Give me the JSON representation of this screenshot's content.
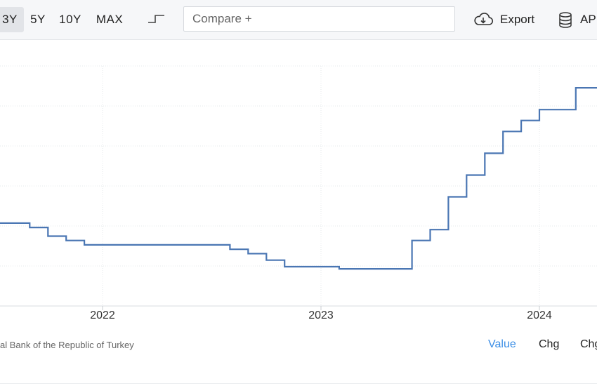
{
  "toolbar": {
    "ranges": [
      "3Y",
      "5Y",
      "10Y",
      "MAX"
    ],
    "active_range": "3Y",
    "compare_placeholder": "Compare +",
    "export_label": "Export",
    "api_label": "AP",
    "step_icon": "step-chart-icon",
    "export_icon": "cloud-download-icon",
    "api_icon": "database-icon"
  },
  "chart_data": {
    "type": "line",
    "step": true,
    "x_tick_labels": [
      "2022",
      "2023",
      "2024"
    ],
    "series": [
      {
        "color": "#4a76b3",
        "points": [
          {
            "x": "2021-05",
            "y": 19.0
          },
          {
            "x": "2021-09",
            "y": 18.0
          },
          {
            "x": "2021-10",
            "y": 16.0
          },
          {
            "x": "2021-11",
            "y": 15.0
          },
          {
            "x": "2021-12",
            "y": 14.0
          },
          {
            "x": "2022-08",
            "y": 13.0
          },
          {
            "x": "2022-09",
            "y": 12.0
          },
          {
            "x": "2022-10",
            "y": 10.5
          },
          {
            "x": "2022-11",
            "y": 9.0
          },
          {
            "x": "2023-02",
            "y": 8.5
          },
          {
            "x": "2023-06",
            "y": 15.0
          },
          {
            "x": "2023-07",
            "y": 17.5
          },
          {
            "x": "2023-08",
            "y": 25.0
          },
          {
            "x": "2023-09",
            "y": 30.0
          },
          {
            "x": "2023-10",
            "y": 35.0
          },
          {
            "x": "2023-11",
            "y": 40.0
          },
          {
            "x": "2023-12",
            "y": 42.5
          },
          {
            "x": "2024-01",
            "y": 45.0
          },
          {
            "x": "2024-03",
            "y": 50.0
          }
        ]
      }
    ],
    "ylim": [
      0,
      55
    ],
    "grid": true,
    "legend": "none"
  },
  "footer": {
    "source": "al Bank of the Republic of Turkey",
    "modes": [
      "Value",
      "Chg",
      "Chg"
    ],
    "active_mode": "Value"
  },
  "colors": {
    "accent": "#3b8ee6",
    "line": "#4a76b3",
    "toolbar_bg": "#f6f7f9"
  }
}
